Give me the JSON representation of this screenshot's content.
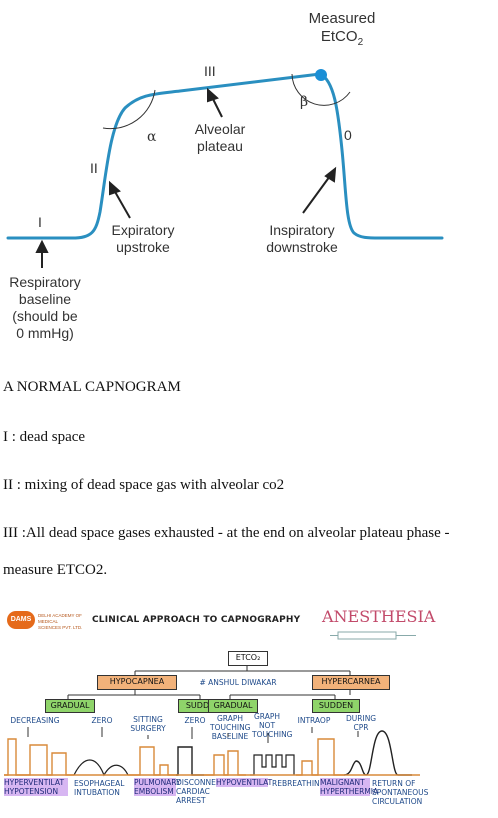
{
  "capnogram": {
    "measured_label_line1": "Measured",
    "measured_label_line2": "EtCO",
    "measured_label_sub": "2",
    "phase_I": "I",
    "phase_II": "II",
    "phase_III": "III",
    "phase_0": "0",
    "alpha": "α",
    "beta": "β",
    "alveolar_line1": "Alveolar",
    "alveolar_line2": "plateau",
    "expiratory_line1": "Expiratory",
    "expiratory_line2": "upstroke",
    "inspiratory_line1": "Inspiratory",
    "inspiratory_line2": "downstroke",
    "baseline_line1": "Respiratory",
    "baseline_line2": "baseline",
    "baseline_line3": "(should be",
    "baseline_line4": "0 mmHg)",
    "curve_color": "#2a8fc0",
    "dot_color": "#1a8fd6"
  },
  "text": {
    "heading": "A NORMAL CAPNOGRAM",
    "line1": "I : dead space",
    "line2": "II : mixing of dead space gas with alveolar co2",
    "line3": "III :All dead space gases exhausted - at the end on alveolar plateau phase -",
    "line4": "measure ETCO2."
  },
  "flow": {
    "logo_text": "DAMS",
    "logo_sub1": "DELHI ACADEMY OF MEDICAL",
    "logo_sub2": "SCIENCES PVT. LTD.",
    "title": "CLINICAL APPROACH TO CAPNOGRAPHY",
    "brand": "ANESTHESIA",
    "root": "ETCO₂",
    "hypocapnea": "HYPOCAPNEA",
    "hypercapnea": "HYPERCARNEA",
    "author": "# ANSHUL DIWAKAR",
    "gradual_left": "GRADUAL",
    "sudden_left": "SUDDEN",
    "gradual_right": "GRADUAL",
    "sudden_right": "SUDDEN",
    "leaf_decreasing": "DECREASING",
    "leaf_zero1": "ZERO",
    "leaf_sitting": "SITTING\nSURGERY",
    "leaf_zero2": "ZERO",
    "leaf_graph_touching": "GRAPH\nTOUCHING\nBASELINE",
    "leaf_graph_not": "GRAPH\nNOT\nTOUCHING",
    "leaf_intraop": "INTRAOP",
    "leaf_during_cpr": "DURING\nCPR",
    "dx_hyperventilation": "HYPERVENTILAT\nHYPOTENSION",
    "dx_esophageal": "ESOPHAGEAL\nINTUBATION",
    "dx_pulmonary": "PULMONARY\nEMBOLISM",
    "dx_disconnect": "DISCONNECT\nCARDIAC\nARREST",
    "dx_hypoventilation": "HYPOVENTILAT",
    "dx_rebreathing": "REBREATHING",
    "dx_malignant": "MALIGNANT\nHYPERTHERMIA",
    "dx_rosc": "RETURN OF\nSPONTANEOUS\nCIRCULATION",
    "orange": "#f2b27a",
    "green": "#8fd46a",
    "purple": "#d7b6f2",
    "waveform_color": "#d98a3a"
  }
}
